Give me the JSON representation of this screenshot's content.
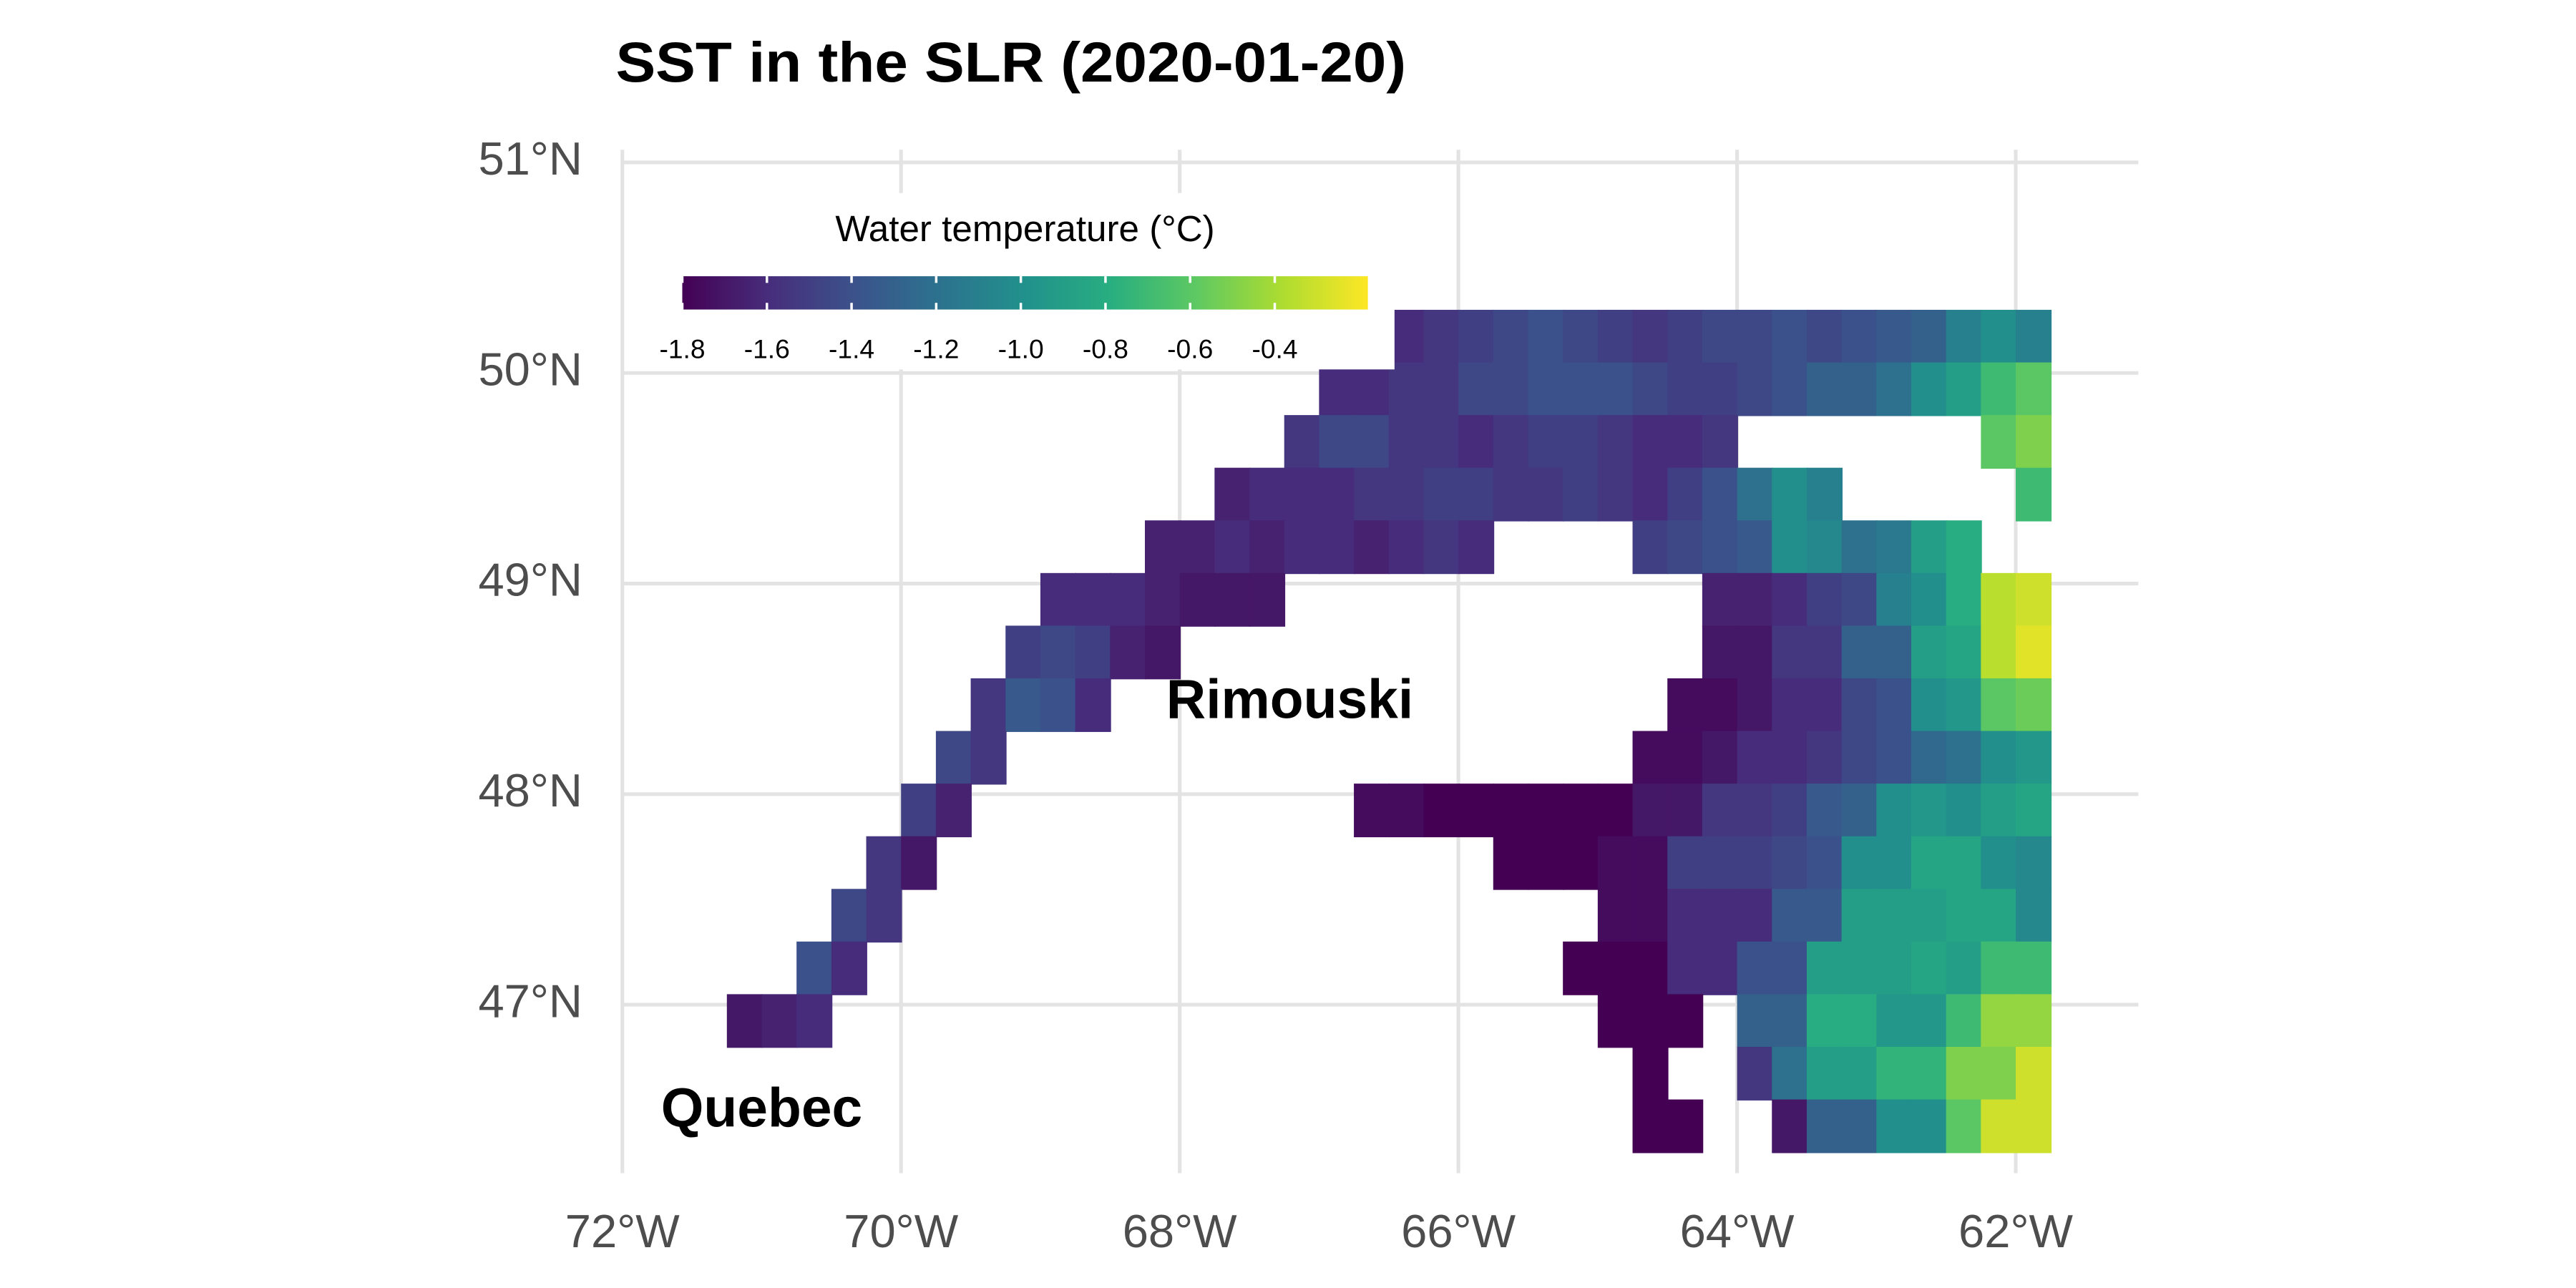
{
  "chart_data": {
    "type": "heatmap",
    "title": "SST in the SLR (2020-01-20)",
    "xlim": [
      -72,
      -61.12
    ],
    "ylim": [
      46.2,
      51.06
    ],
    "xticks": [
      {
        "value": -72,
        "label": "72°W"
      },
      {
        "value": -70,
        "label": "70°W"
      },
      {
        "value": -68,
        "label": "68°W"
      },
      {
        "value": -66,
        "label": "66°W"
      },
      {
        "value": -64,
        "label": "64°W"
      },
      {
        "value": -62,
        "label": "62°W"
      }
    ],
    "yticks": [
      {
        "value": 47,
        "label": "47°N"
      },
      {
        "value": 48,
        "label": "48°N"
      },
      {
        "value": 49,
        "label": "49°N"
      },
      {
        "value": 50,
        "label": "50°N"
      },
      {
        "value": 51,
        "label": "51°N"
      }
    ],
    "grid": true,
    "grid_color": "#e3e3e3",
    "colorbar": {
      "title": "Water temperature (°C)",
      "lim": [
        -1.8,
        -0.18
      ],
      "ticks": [
        -1.8,
        -1.6,
        -1.4,
        -1.2,
        {
          "value": -1,
          "label": "-1.0"
        },
        -0.8,
        -0.6,
        -0.4
      ],
      "colors": [
        "#440154",
        "#472d7b",
        "#3b528b",
        "#2c728e",
        "#21918c",
        "#28ae80",
        "#5ec962",
        "#addc30",
        "#fde725"
      ],
      "position": "top-left"
    },
    "annotations": [
      {
        "text": "Rimouski",
        "x": -67.21,
        "y": 48.43
      },
      {
        "text": "Quebec",
        "x": -71.0,
        "y": 46.49
      }
    ],
    "x": [
      -71.125,
      -70.875,
      -70.625,
      -70.375,
      -70.125,
      -69.875,
      -69.625,
      -69.375,
      -69.125,
      -68.875,
      -68.625,
      -68.375,
      -68.125,
      -67.875,
      -67.625,
      -67.375,
      -67.125,
      -66.875,
      -66.625,
      -66.375,
      -66.125,
      -65.875,
      -65.625,
      -65.375,
      -65.125,
      -64.875,
      -64.625,
      -64.375,
      -64.125,
      -63.875,
      -63.625,
      -63.375,
      -63.125,
      -62.875,
      -62.625,
      -62.375,
      -62.125,
      -61.875
    ],
    "y": [
      50.175,
      49.925,
      49.675,
      49.425,
      49.175,
      48.925,
      48.675,
      48.425,
      48.175,
      47.925,
      47.675,
      47.425,
      47.175,
      46.925,
      46.675,
      46.425
    ],
    "values": [
      [
        null,
        null,
        null,
        null,
        null,
        null,
        null,
        null,
        null,
        null,
        null,
        null,
        null,
        null,
        null,
        null,
        null,
        null,
        -1.6,
        -1.6,
        -1.55,
        -1.5,
        -1.45,
        -1.4,
        -1.45,
        -1.5,
        -1.55,
        -1.5,
        -1.45,
        -1.45,
        -1.4,
        -1.45,
        -1.4,
        -1.35,
        -1.3,
        -1.1,
        -1.0,
        -1.1
      ],
      [
        null,
        null,
        null,
        null,
        null,
        null,
        null,
        null,
        null,
        null,
        null,
        null,
        null,
        null,
        null,
        null,
        null,
        -1.6,
        -1.6,
        -1.55,
        -1.55,
        -1.45,
        -1.45,
        -1.4,
        -1.4,
        -1.4,
        -1.45,
        -1.5,
        -1.5,
        -1.45,
        -1.4,
        -1.3,
        -1.3,
        -1.2,
        -1.0,
        -0.9,
        -0.7,
        -0.6
      ],
      [
        null,
        null,
        null,
        null,
        null,
        null,
        null,
        null,
        null,
        null,
        null,
        null,
        null,
        null,
        null,
        null,
        -1.55,
        -1.45,
        -1.45,
        -1.55,
        -1.55,
        -1.6,
        -1.55,
        -1.5,
        -1.5,
        -1.55,
        -1.6,
        -1.6,
        -1.55,
        null,
        null,
        null,
        null,
        null,
        null,
        null,
        -0.6,
        -0.5
      ],
      [
        null,
        null,
        null,
        null,
        null,
        null,
        null,
        null,
        null,
        null,
        null,
        null,
        null,
        null,
        -1.65,
        -1.6,
        -1.6,
        -1.6,
        -1.55,
        -1.55,
        -1.5,
        -1.5,
        -1.55,
        -1.55,
        -1.5,
        -1.55,
        -1.6,
        -1.5,
        -1.4,
        -1.2,
        -1.0,
        -1.1,
        null,
        null,
        null,
        null,
        null,
        -0.7
      ],
      [
        null,
        null,
        null,
        null,
        null,
        null,
        null,
        null,
        null,
        null,
        null,
        null,
        -1.65,
        -1.65,
        -1.6,
        -1.65,
        -1.6,
        -1.6,
        -1.65,
        -1.6,
        -1.55,
        -1.6,
        null,
        null,
        null,
        null,
        -1.5,
        -1.45,
        -1.4,
        -1.35,
        -1.0,
        -1.05,
        -1.2,
        -1.15,
        -0.9,
        -0.8,
        null,
        null
      ],
      [
        null,
        null,
        null,
        null,
        null,
        null,
        null,
        null,
        null,
        -1.6,
        -1.6,
        -1.6,
        -1.65,
        -1.7,
        -1.7,
        -1.7,
        null,
        null,
        null,
        null,
        null,
        null,
        null,
        null,
        null,
        null,
        null,
        null,
        -1.65,
        -1.65,
        -1.6,
        -1.5,
        -1.45,
        -1.1,
        -1.0,
        -0.8,
        -0.35,
        -0.3
      ],
      [
        null,
        null,
        null,
        null,
        null,
        null,
        null,
        null,
        -1.5,
        -1.45,
        -1.5,
        -1.65,
        -1.7,
        null,
        null,
        null,
        null,
        null,
        null,
        null,
        null,
        null,
        null,
        null,
        null,
        null,
        null,
        null,
        -1.7,
        -1.7,
        -1.55,
        -1.55,
        -1.3,
        -1.3,
        -0.9,
        -0.85,
        -0.35,
        -0.25
      ],
      [
        null,
        null,
        null,
        null,
        null,
        null,
        null,
        -1.55,
        -1.35,
        -1.4,
        -1.6,
        null,
        null,
        null,
        null,
        null,
        null,
        null,
        null,
        null,
        null,
        null,
        null,
        null,
        null,
        null,
        null,
        -1.75,
        -1.75,
        -1.7,
        -1.6,
        -1.6,
        -1.45,
        -1.4,
        -1.0,
        -0.95,
        -0.6,
        -0.55
      ],
      [
        null,
        null,
        null,
        null,
        null,
        null,
        -1.45,
        -1.55,
        null,
        null,
        null,
        null,
        null,
        null,
        null,
        null,
        null,
        null,
        null,
        null,
        null,
        null,
        null,
        null,
        null,
        null,
        -1.75,
        -1.75,
        -1.7,
        -1.6,
        -1.6,
        -1.55,
        -1.45,
        -1.4,
        -1.25,
        -1.2,
        -1.0,
        -0.95
      ],
      [
        null,
        null,
        null,
        null,
        null,
        -1.5,
        -1.65,
        null,
        null,
        null,
        null,
        null,
        null,
        null,
        null,
        null,
        null,
        null,
        -1.75,
        -1.75,
        -1.8,
        -1.8,
        -1.8,
        -1.8,
        -1.8,
        -1.8,
        -1.7,
        -1.7,
        -1.55,
        -1.55,
        -1.5,
        -1.35,
        -1.3,
        -1.0,
        -0.95,
        -1.0,
        -0.9,
        -0.85
      ],
      [
        null,
        null,
        null,
        null,
        -1.55,
        -1.7,
        null,
        null,
        null,
        null,
        null,
        null,
        null,
        null,
        null,
        null,
        null,
        null,
        null,
        null,
        null,
        null,
        -1.8,
        -1.8,
        -1.8,
        -1.75,
        -1.75,
        -1.5,
        -1.5,
        -1.5,
        -1.45,
        -1.4,
        -1.0,
        -1.0,
        -0.85,
        -0.85,
        -1.0,
        -1.05
      ],
      [
        null,
        null,
        null,
        -1.45,
        -1.55,
        null,
        null,
        null,
        null,
        null,
        null,
        null,
        null,
        null,
        null,
        null,
        null,
        null,
        null,
        null,
        null,
        null,
        null,
        null,
        null,
        -1.75,
        -1.75,
        -1.6,
        -1.6,
        -1.6,
        -1.35,
        -1.35,
        -0.9,
        -0.9,
        -0.9,
        -0.85,
        -0.85,
        -1.05
      ],
      [
        null,
        null,
        -1.4,
        -1.6,
        null,
        null,
        null,
        null,
        null,
        null,
        null,
        null,
        null,
        null,
        null,
        null,
        null,
        null,
        null,
        null,
        null,
        null,
        null,
        null,
        -1.8,
        -1.8,
        -1.8,
        -1.6,
        -1.6,
        -1.4,
        -1.4,
        -0.9,
        -0.9,
        -0.9,
        -0.85,
        -0.9,
        -0.7,
        -0.7
      ],
      [
        -1.7,
        -1.65,
        -1.6,
        null,
        null,
        null,
        null,
        null,
        null,
        null,
        null,
        null,
        null,
        null,
        null,
        null,
        null,
        null,
        null,
        null,
        null,
        null,
        null,
        null,
        null,
        -1.8,
        -1.8,
        -1.8,
        null,
        -1.3,
        -1.3,
        -0.8,
        -0.8,
        -0.95,
        -0.95,
        -0.7,
        -0.45,
        -0.45
      ],
      [
        null,
        null,
        null,
        null,
        null,
        null,
        null,
        null,
        null,
        null,
        null,
        null,
        null,
        null,
        null,
        null,
        null,
        null,
        null,
        null,
        null,
        null,
        null,
        null,
        null,
        null,
        -1.8,
        null,
        null,
        -1.55,
        -1.2,
        -0.9,
        -0.9,
        -0.75,
        -0.75,
        -0.5,
        -0.5,
        -0.3
      ],
      [
        null,
        null,
        null,
        null,
        null,
        null,
        null,
        null,
        null,
        null,
        null,
        null,
        null,
        null,
        null,
        null,
        null,
        null,
        null,
        null,
        null,
        null,
        null,
        null,
        null,
        null,
        -1.8,
        -1.8,
        null,
        null,
        -1.7,
        -1.3,
        -1.3,
        -1.0,
        -1.0,
        -0.6,
        -0.3,
        -0.3
      ]
    ]
  }
}
